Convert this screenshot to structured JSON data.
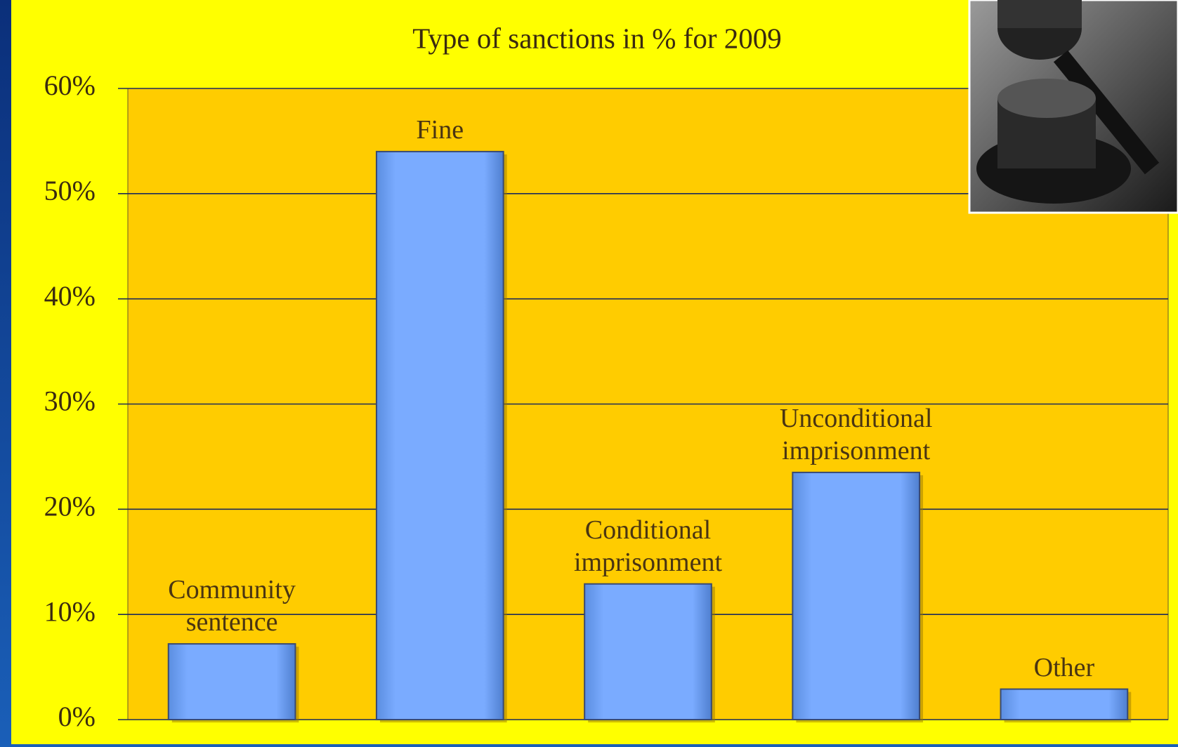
{
  "chart_data": {
    "type": "bar",
    "title": "Type of sanctions in % for 2009",
    "categories": [
      "Community sentence",
      "Fine",
      "Conditional imprisonment",
      "Unconditional imprisonment",
      "Other"
    ],
    "values": [
      7.2,
      54,
      12.9,
      23.5,
      2.9
    ],
    "color": "#7aabff",
    "ylim": [
      0,
      60
    ],
    "yticks": [
      {
        "value": 0,
        "label": "0%"
      },
      {
        "value": 10,
        "label": "10%"
      },
      {
        "value": 20,
        "label": "20%"
      },
      {
        "value": 30,
        "label": "30%"
      },
      {
        "value": 40,
        "label": "40%"
      },
      {
        "value": 50,
        "label": "50%"
      },
      {
        "value": 60,
        "label": "60%"
      }
    ],
    "grid": true
  }
}
